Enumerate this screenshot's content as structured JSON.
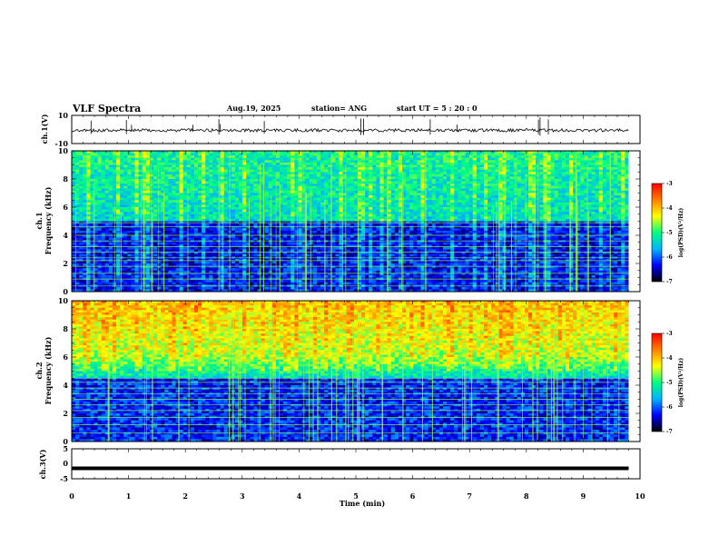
{
  "header": {
    "title": "VLF Spectra",
    "date": "Aug.19, 2025",
    "station": "station= ANG",
    "start": "start UT =  5 : 20 : 0"
  },
  "chart_data": [
    {
      "type": "line",
      "name": "ch1-waveform",
      "ylabel": "ch.1(V)",
      "ylim": [
        -10,
        10
      ],
      "yticks": [
        "10",
        "-10"
      ],
      "baseline_value": 0,
      "xlim": [
        0,
        10
      ]
    },
    {
      "type": "heatmap",
      "name": "ch1-spectrogram",
      "ylabel_top": "ch.1",
      "ylabel": "Frequency (kHz)",
      "ylim": [
        0,
        10
      ],
      "yticks": [
        "0",
        "2",
        "4",
        "6",
        "8",
        "10"
      ],
      "xlim": [
        0,
        9.8
      ],
      "colorbar": {
        "label": "log(PSD)(V²/Hz)",
        "range": [
          -7,
          -3
        ],
        "ticks": [
          "-3",
          "-4",
          "-5",
          "-6",
          "-7"
        ]
      },
      "horizontal_lines_khz": [
        0.4,
        0.9,
        1.3,
        1.8,
        2.2,
        2.4,
        2.8,
        3.2,
        3.6,
        4.0,
        4.6,
        4.9
      ]
    },
    {
      "type": "heatmap",
      "name": "ch2-spectrogram",
      "ylabel_top": "ch.2",
      "ylabel": "Frequency (kHz)",
      "ylim": [
        0,
        10
      ],
      "yticks": [
        "0",
        "2",
        "4",
        "6",
        "8",
        "10"
      ],
      "xlim": [
        0,
        9.8
      ],
      "colorbar": {
        "label": "log(PSD)(V²/Hz)",
        "range": [
          -7,
          -3
        ],
        "ticks": [
          "-3",
          "-4",
          "-5",
          "-6",
          "-7"
        ]
      },
      "horizontal_lines_khz": [
        0.6,
        1.2,
        1.7,
        2.2,
        2.6,
        3.0,
        3.4,
        3.8,
        4.2,
        4.5
      ]
    },
    {
      "type": "line",
      "name": "ch3-waveform",
      "ylabel": "ch.3(V)",
      "ylim": [
        -5,
        5
      ],
      "yticks": [
        "5",
        "0",
        "-5"
      ],
      "baseline_value": -1.5,
      "xlim": [
        0,
        10
      ],
      "xlabel": "Time (min)",
      "xticks": [
        "0",
        "1",
        "2",
        "3",
        "4",
        "5",
        "6",
        "7",
        "8",
        "9",
        "10"
      ]
    }
  ],
  "colors": {
    "colormap": [
      "#000000",
      "#0000ff",
      "#00b4ff",
      "#00ff80",
      "#ffff00",
      "#ff8000",
      "#ff0000",
      "#ffffff"
    ],
    "line_overlay": "#a0ff40"
  }
}
